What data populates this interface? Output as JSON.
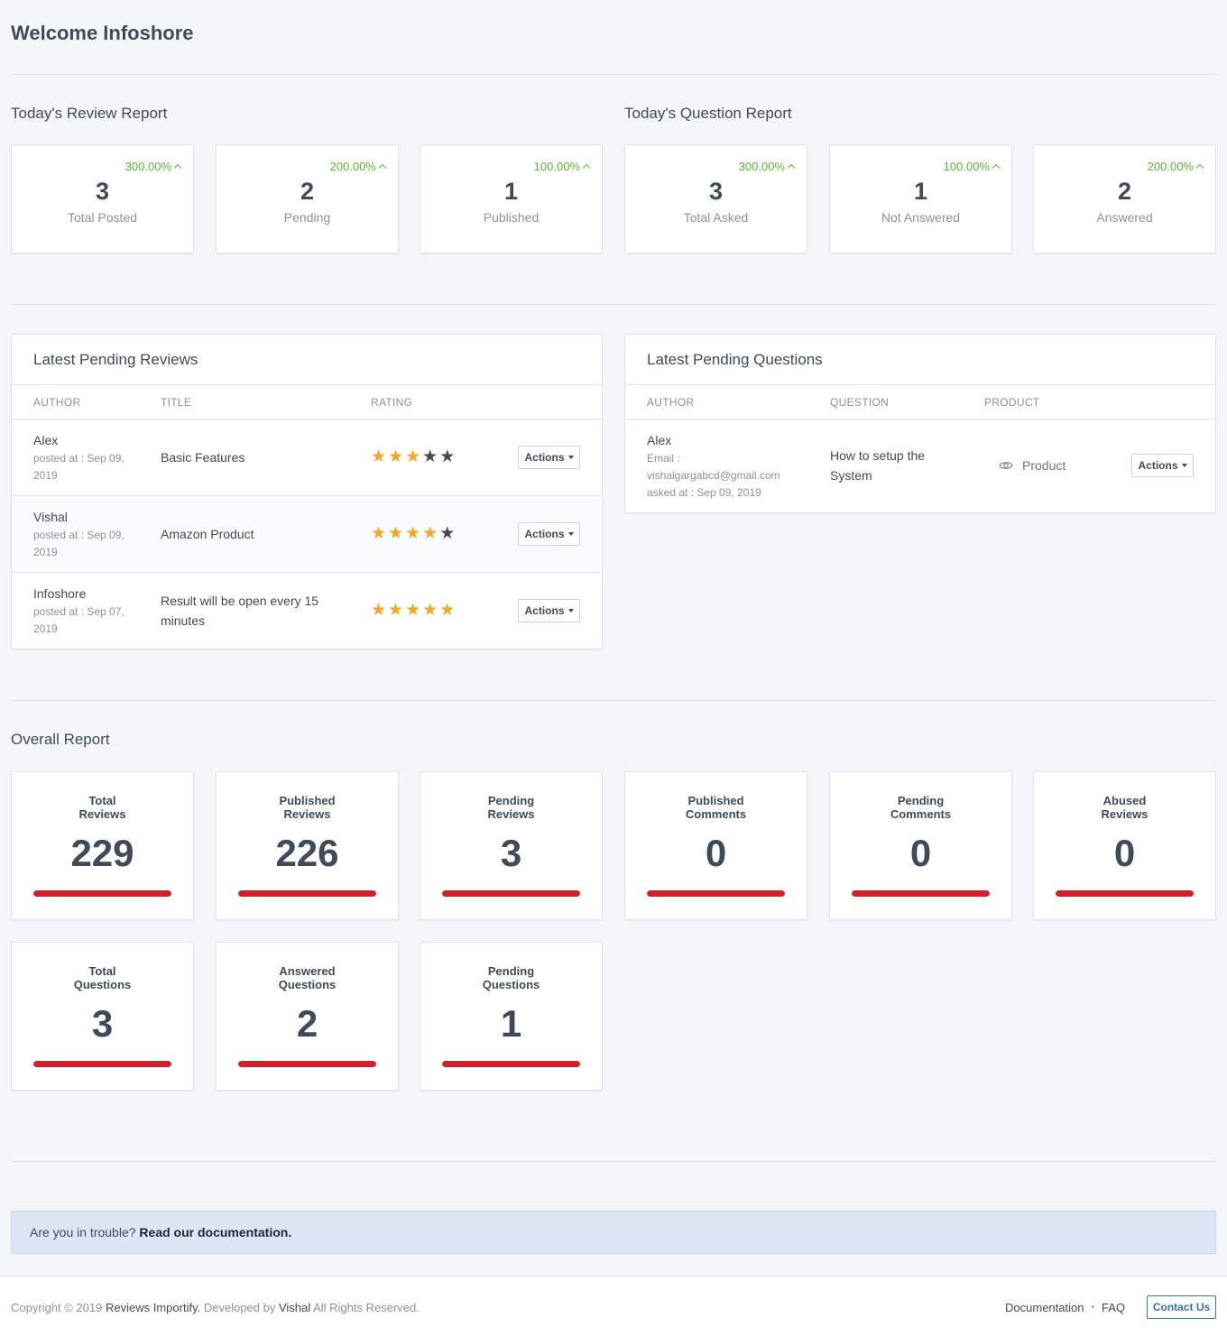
{
  "page": {
    "title": "Welcome Infoshore"
  },
  "review_report": {
    "title": "Today's Review Report",
    "cards": [
      {
        "pct": "300.00%",
        "value": "3",
        "label": "Total Posted"
      },
      {
        "pct": "200.00%",
        "value": "2",
        "label": "Pending"
      },
      {
        "pct": "100.00%",
        "value": "1",
        "label": "Published"
      }
    ]
  },
  "question_report": {
    "title": "Today's Question Report",
    "cards": [
      {
        "pct": "300.00%",
        "value": "3",
        "label": "Total Asked"
      },
      {
        "pct": "100.00%",
        "value": "1",
        "label": "Not Answered"
      },
      {
        "pct": "200.00%",
        "value": "2",
        "label": "Answered"
      }
    ]
  },
  "pending_reviews": {
    "title": "Latest Pending Reviews",
    "headers": [
      "AUTHOR",
      "TITLE",
      "RATING"
    ],
    "rows": [
      {
        "author": "Alex",
        "meta1": "posted at : Sep 09,",
        "meta2": "2019",
        "title1": "Basic Features",
        "title2": "",
        "rating": 3
      },
      {
        "author": "Vishal",
        "meta1": "posted at : Sep 09,",
        "meta2": "2019",
        "title1": "Amazon Product",
        "title2": "",
        "rating": 4
      },
      {
        "author": "Infoshore",
        "meta1": "posted at : Sep 07,",
        "meta2": "2019",
        "title1": "Result will be open every 15",
        "title2": "minutes",
        "rating": 5
      }
    ],
    "actions_label": "Actions"
  },
  "pending_questions": {
    "title": "Latest Pending Questions",
    "headers": [
      "AUTHOR",
      "QUESTION",
      "PRODUCT"
    ],
    "rows": [
      {
        "author": "Alex",
        "meta1": "Email :",
        "meta2": "vishalgargabcd@gmail.com",
        "meta3": "asked at : Sep 09, 2019",
        "question1": "How to setup the",
        "question2": "System",
        "product": "Product"
      }
    ],
    "actions_label": "Actions"
  },
  "overall": {
    "title": "Overall Report",
    "cards": [
      {
        "label1": "Total",
        "label2": "Reviews",
        "value": "229",
        "fill": 1.0
      },
      {
        "label1": "Published",
        "label2": "Reviews",
        "value": "226",
        "fill": 1.0
      },
      {
        "label1": "Pending",
        "label2": "Reviews",
        "value": "3",
        "fill": 1.0
      },
      {
        "label1": "Published",
        "label2": "Comments",
        "value": "0",
        "fill": 1.0
      },
      {
        "label1": "Pending",
        "label2": "Comments",
        "value": "0",
        "fill": 1.0
      },
      {
        "label1": "Abused",
        "label2": "Reviews",
        "value": "0",
        "fill": 1.0
      },
      {
        "label1": "Total",
        "label2": "Questions",
        "value": "3",
        "fill": 1.0
      },
      {
        "label1": "Answered",
        "label2": "Questions",
        "value": "2",
        "fill": 1.0
      },
      {
        "label1": "Pending",
        "label2": "Questions",
        "value": "1",
        "fill": 1.0
      }
    ]
  },
  "notice": {
    "text": "Are you in trouble?",
    "link": "Read our documentation."
  },
  "footer": {
    "copy_prefix": "Copyright © 2019",
    "app_name": "Reviews Importify.",
    "dev_prefix": "Developed by",
    "dev_name": "Vishal",
    "rights": "All Rights Reserved.",
    "link_docs": "Documentation",
    "link_faq": "FAQ",
    "contact": "Contact Us"
  },
  "colors": {
    "accent_green": "#5cb531",
    "bar_red": "#d0202a",
    "star_on": "#f5a623",
    "link_blue": "#3572b0"
  }
}
